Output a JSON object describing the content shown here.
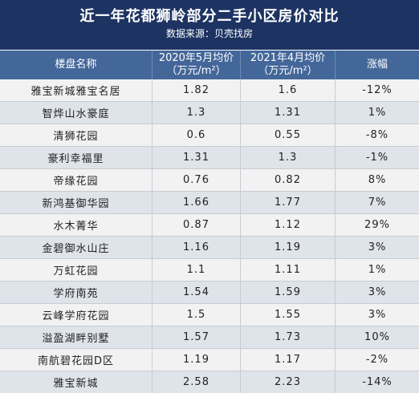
{
  "title": "近一年花都狮岭部分二手小区房价对比",
  "subtitle": "数据来源：贝壳找房",
  "headers": {
    "name": "楼盘名称",
    "price_2020_line1": "2020年5月均价",
    "price_2020_line2": "（万元/m²）",
    "price_2021_line1": "2021年4月均价",
    "price_2021_line2": "（万元/m²）",
    "change": "涨幅"
  },
  "rows": [
    {
      "name": "雅宝新城雅宝名居",
      "p2020": "1.82",
      "p2021": "1.6",
      "change": "-12%"
    },
    {
      "name": "智烨山水豪庭",
      "p2020": "1.3",
      "p2021": "1.31",
      "change": "1%"
    },
    {
      "name": "清狮花园",
      "p2020": "0.6",
      "p2021": "0.55",
      "change": "-8%"
    },
    {
      "name": "豪利幸福里",
      "p2020": "1.31",
      "p2021": "1.3",
      "change": "-1%"
    },
    {
      "name": "帝缘花园",
      "p2020": "0.76",
      "p2021": "0.82",
      "change": "8%"
    },
    {
      "name": "新鸿基御华园",
      "p2020": "1.66",
      "p2021": "1.77",
      "change": "7%"
    },
    {
      "name": "水木菁华",
      "p2020": "0.87",
      "p2021": "1.12",
      "change": "29%"
    },
    {
      "name": "金碧御水山庄",
      "p2020": "1.16",
      "p2021": "1.19",
      "change": "3%"
    },
    {
      "name": "万虹花园",
      "p2020": "1.1",
      "p2021": "1.11",
      "change": "1%"
    },
    {
      "name": "学府南苑",
      "p2020": "1.54",
      "p2021": "1.59",
      "change": "3%"
    },
    {
      "name": "云峰学府花园",
      "p2020": "1.5",
      "p2021": "1.55",
      "change": "3%"
    },
    {
      "name": "溢盈湖畔别墅",
      "p2020": "1.57",
      "p2021": "1.73",
      "change": "10%"
    },
    {
      "name": "南航碧花园D区",
      "p2020": "1.19",
      "p2021": "1.17",
      "change": "-2%"
    },
    {
      "name": "雅宝新城",
      "p2020": "2.58",
      "p2021": "2.23",
      "change": "-14%"
    }
  ]
}
